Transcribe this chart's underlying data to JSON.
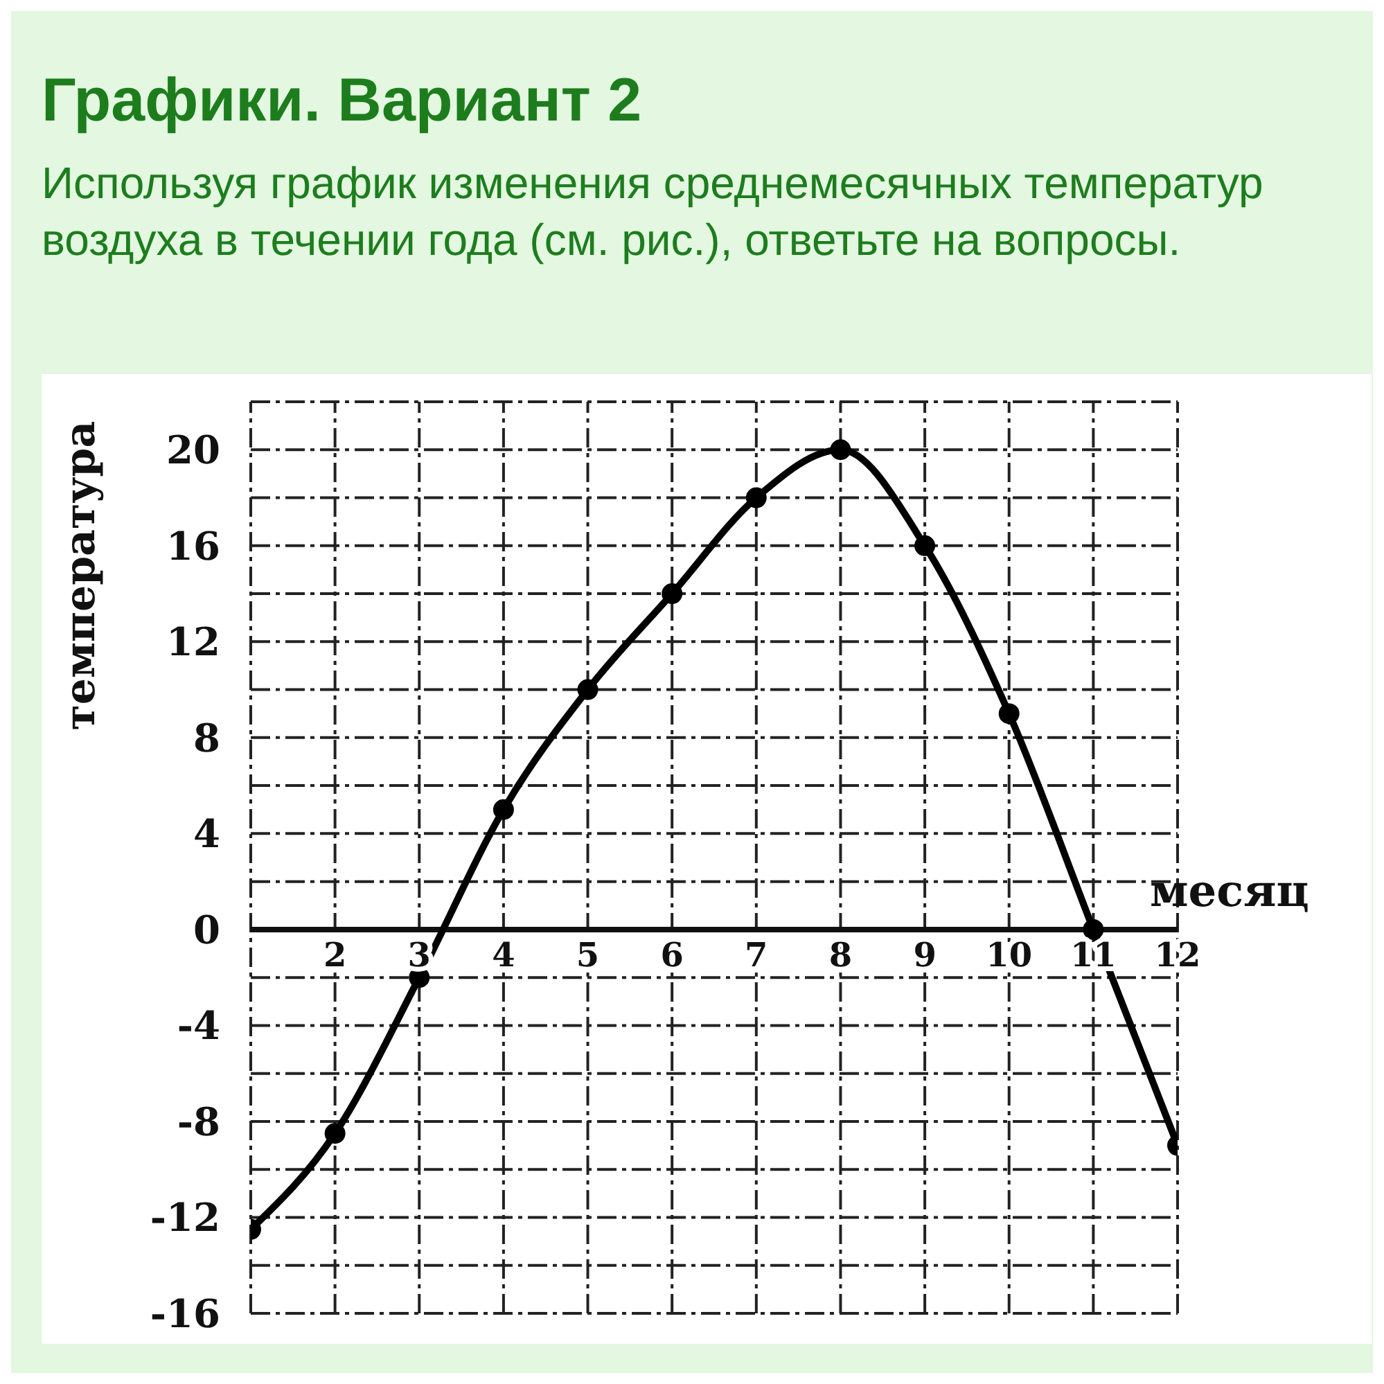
{
  "chart_data": {
    "type": "line",
    "title": "Графики. Вариант 2",
    "subtitle": "Используя график изменения среднемесячных температур воздуха в течении года (см. рис.), ответьте на вопросы.",
    "xlabel": "месяц",
    "ylabel": "температура",
    "x": [
      1,
      2,
      3,
      4,
      5,
      6,
      7,
      8,
      9,
      10,
      11,
      12
    ],
    "series": [
      {
        "color": "#000000",
        "values": [
          -12.5,
          -8.5,
          -2,
          5,
          10,
          14,
          18,
          20,
          16,
          9,
          0,
          -9
        ]
      }
    ],
    "xlim": [
      1,
      12
    ],
    "xticks": [
      {
        "value": 1,
        "label": null
      },
      2,
      3,
      4,
      5,
      6,
      7,
      8,
      9,
      10,
      11,
      12
    ],
    "ylim": [
      -16,
      22
    ],
    "yticks": [
      -16,
      {
        "value": -14,
        "label": null
      },
      -12,
      {
        "value": -10,
        "label": null
      },
      -8,
      {
        "value": -6,
        "label": null
      },
      -4,
      {
        "value": -2,
        "label": null
      },
      0,
      {
        "value": 2,
        "label": null
      },
      4,
      {
        "value": 6,
        "label": null
      },
      8,
      {
        "value": 10,
        "label": null
      },
      12,
      {
        "value": 14,
        "label": null
      },
      16,
      {
        "value": 18,
        "label": null
      },
      20,
      {
        "value": 22,
        "label": null
      }
    ],
    "grid": true,
    "marker": "circle",
    "line_style": "solid"
  }
}
